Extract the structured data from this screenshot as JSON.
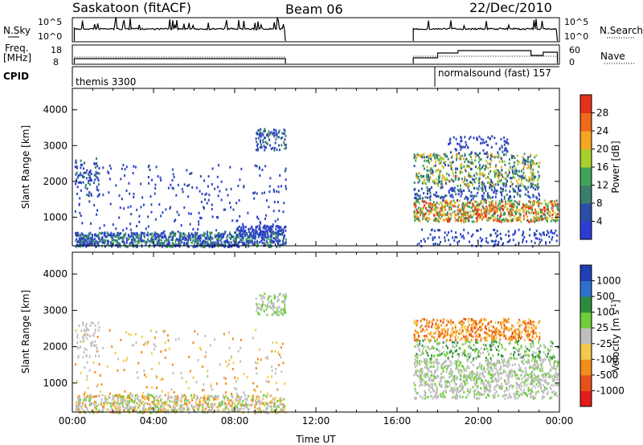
{
  "header": {
    "station": "Saskatoon (fitACF)",
    "beam": "Beam 06",
    "date": "22/Dec/2010"
  },
  "top_panels": {
    "nsky_label": "N.Sky",
    "nsky_ticks": [
      "10^5",
      "10^0"
    ],
    "nsearch_label": "N.Search",
    "nsearch_ticks": [
      "10^5",
      "10^0"
    ],
    "freq_label_1": "Freq.",
    "freq_label_2": "[MHz]",
    "freq_ticks": [
      "18",
      "8"
    ],
    "nave_label": "Nave",
    "nave_ticks": [
      "60",
      "0"
    ],
    "cpid_label": "CPID",
    "cpid_1": "themis 3300",
    "cpid_2": "normalsound (fast) 157"
  },
  "chart_data": [
    {
      "type": "heatmap",
      "ylabel": "Slant Range [km]",
      "yticks": [
        "4000",
        "3000",
        "2000",
        "1000"
      ],
      "ylim": [
        200,
        4600
      ],
      "xlim_hours": [
        0,
        24
      ],
      "colorbar_label": "Power [dB]",
      "colorbar_ticks": [
        "28",
        "24",
        "20",
        "16",
        "12",
        "8",
        "4"
      ],
      "colors": [
        "#2e3cd6",
        "#2a4da8",
        "#3a7f6b",
        "#3fa55a",
        "#a9cf2e",
        "#f5a623",
        "#f06a1a",
        "#e8311a"
      ]
    },
    {
      "type": "heatmap",
      "ylabel": "Slant Range [km]",
      "yticks": [
        "4000",
        "3000",
        "2000",
        "1000"
      ],
      "ylim": [
        200,
        4600
      ],
      "xlim_hours": [
        0,
        24
      ],
      "xlabel": "Time UT",
      "xticks": [
        "00:00",
        "04:00",
        "08:00",
        "12:00",
        "16:00",
        "20:00",
        "00:00"
      ],
      "colorbar_label": "Velocity [m s",
      "colorbar_label_sup": "-1",
      "colorbar_label_end": "]",
      "colorbar_ticks": [
        "1000",
        "500",
        "100",
        "25",
        "-25",
        "-100",
        "-500",
        "-1000"
      ],
      "colors": [
        "#1f3fb5",
        "#2f6fd0",
        "#2e8b3e",
        "#6fcf3a",
        "#bfbfbf",
        "#f2c94c",
        "#f28c1a",
        "#e8511a",
        "#e31a1a"
      ]
    }
  ]
}
